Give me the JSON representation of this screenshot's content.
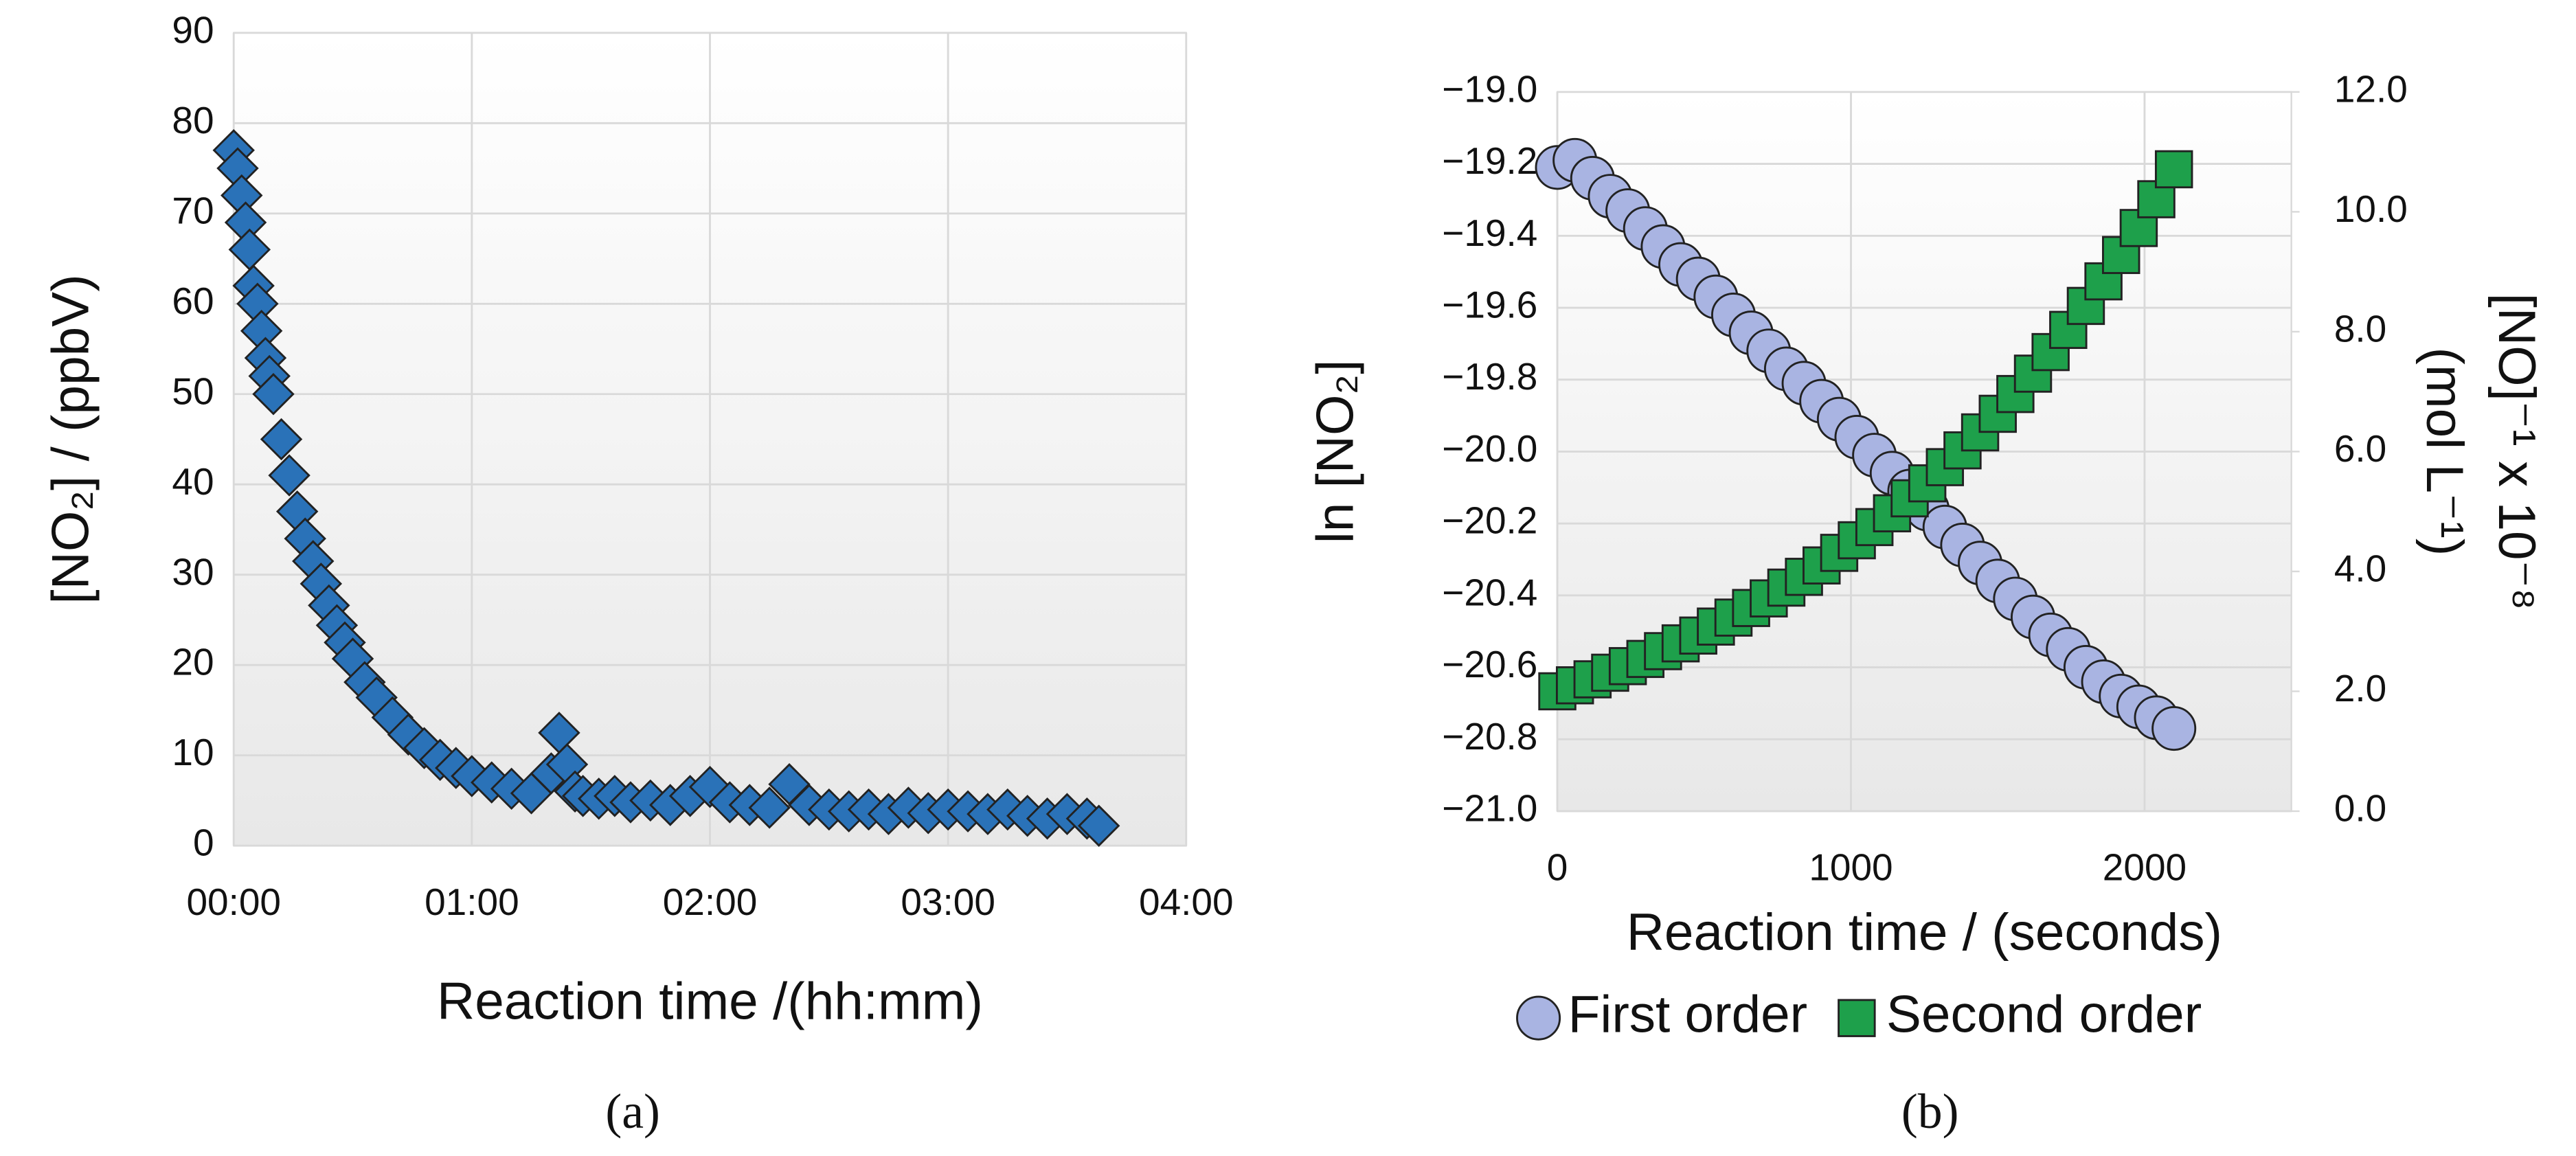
{
  "chart_data": [
    {
      "type": "scatter",
      "panel_label": "(a)",
      "xlabel": "Reaction time /(hh:mm)",
      "ylabel": "[NO₂] / (ppbV)",
      "xlim": [
        0,
        240
      ],
      "xticks": [
        {
          "value": 0,
          "label": "00:00"
        },
        {
          "value": 60,
          "label": "01:00"
        },
        {
          "value": 120,
          "label": "02:00"
        },
        {
          "value": 180,
          "label": "03:00"
        },
        {
          "value": 240,
          "label": "04:00"
        }
      ],
      "ylim": [
        0,
        90
      ],
      "yticks": [
        0,
        10,
        20,
        30,
        40,
        50,
        60,
        70,
        80,
        90
      ],
      "grid": true,
      "marker": "diamond",
      "color": "#2a72b8",
      "x": [
        0,
        1,
        2,
        3,
        4,
        5,
        6,
        7,
        8,
        9,
        10,
        12,
        14,
        16,
        18,
        20,
        22,
        24,
        26,
        28,
        30,
        33,
        36,
        40,
        44,
        48,
        52,
        56,
        60,
        65,
        70,
        75,
        80,
        82,
        84,
        86,
        88,
        92,
        96,
        100,
        105,
        110,
        115,
        120,
        125,
        130,
        135,
        140,
        145,
        150,
        155,
        160,
        165,
        170,
        175,
        180,
        185,
        190,
        195,
        200,
        205,
        210,
        215,
        218
      ],
      "values": [
        77,
        75,
        72,
        69,
        66,
        62,
        60,
        57,
        54,
        52,
        50,
        45,
        41,
        37,
        34,
        31.5,
        29,
        26.6,
        24.4,
        22.5,
        20.7,
        18.1,
        16.4,
        14.2,
        12.3,
        10.8,
        9.5,
        8.6,
        7.7,
        7.0,
        6.3,
        5.8,
        8,
        12.5,
        9,
        6,
        5.5,
        5.2,
        5.5,
        4.8,
        5,
        4.5,
        5.5,
        6.5,
        4.8,
        4.5,
        4.2,
        6.8,
        4.5,
        4,
        3.8,
        4,
        3.5,
        4.2,
        3.6,
        4,
        3.8,
        3.5,
        4,
        3.3,
        3,
        3.5,
        3,
        2.2
      ]
    },
    {
      "type": "scatter",
      "panel_label": "(b)",
      "xlabel": "Reaction time / (seconds)",
      "ylabel": "ln [NO₂]",
      "y2label": [
        "[NO]⁻¹ x 10⁻⁸",
        "(mol L⁻¹)"
      ],
      "xlim": [
        0,
        2500
      ],
      "xticks": [
        0,
        1000,
        2000
      ],
      "ylim": [
        -21,
        -19
      ],
      "yticks": [
        {
          "value": -21,
          "label": "−21.0"
        },
        {
          "value": -20.8,
          "label": "−20.8"
        },
        {
          "value": -20.6,
          "label": "−20.6"
        },
        {
          "value": -20.4,
          "label": "−20.4"
        },
        {
          "value": -20.2,
          "label": "−20.2"
        },
        {
          "value": -20,
          "label": "−20.0"
        },
        {
          "value": -19.8,
          "label": "−19.8"
        },
        {
          "value": -19.6,
          "label": "−19.6"
        },
        {
          "value": -19.4,
          "label": "−19.4"
        },
        {
          "value": -19.2,
          "label": "−19.2"
        },
        {
          "value": -19,
          "label": "−19.0"
        }
      ],
      "y2lim": [
        0,
        12
      ],
      "y2ticks": [
        {
          "value": 0,
          "label": "0.0"
        },
        {
          "value": 2,
          "label": "2.0"
        },
        {
          "value": 4,
          "label": "4.0"
        },
        {
          "value": 6,
          "label": "6.0"
        },
        {
          "value": 8,
          "label": "8.0"
        },
        {
          "value": 10,
          "label": "10.0"
        },
        {
          "value": 12,
          "label": "12.0"
        }
      ],
      "grid": true,
      "legend": "bottom",
      "x": [
        0,
        60,
        120,
        180,
        240,
        300,
        360,
        420,
        480,
        540,
        600,
        660,
        720,
        780,
        840,
        900,
        960,
        1020,
        1080,
        1140,
        1200,
        1260,
        1320,
        1380,
        1440,
        1500,
        1560,
        1620,
        1680,
        1740,
        1800,
        1860,
        1920,
        1980,
        2040,
        2100
      ],
      "series": [
        {
          "name": "First order",
          "color": "#a9b4e2",
          "marker": "circle",
          "values": [
            -19.21,
            -19.19,
            -19.24,
            -19.29,
            -19.33,
            -19.38,
            -19.43,
            -19.48,
            -19.52,
            -19.57,
            -19.62,
            -19.67,
            -19.72,
            -19.77,
            -19.81,
            -19.86,
            -19.91,
            -19.96,
            -20.01,
            -20.06,
            -20.11,
            -20.16,
            -20.21,
            -20.26,
            -20.31,
            -20.36,
            -20.41,
            -20.46,
            -20.51,
            -20.55,
            -20.6,
            -20.64,
            -20.68,
            -20.71,
            -20.74,
            -20.77
          ]
        },
        {
          "name": "Second order",
          "color": "#1ea04b",
          "marker": "square",
          "axis": "y2",
          "values": [
            2.0,
            2.1,
            2.2,
            2.31,
            2.42,
            2.54,
            2.67,
            2.8,
            2.93,
            3.08,
            3.23,
            3.39,
            3.55,
            3.73,
            3.91,
            4.1,
            4.31,
            4.52,
            4.74,
            4.97,
            5.22,
            5.47,
            5.74,
            6.02,
            6.32,
            6.63,
            6.96,
            7.3,
            7.66,
            8.03,
            8.43,
            8.84,
            9.28,
            9.73,
            10.21,
            10.71
          ]
        }
      ]
    }
  ]
}
